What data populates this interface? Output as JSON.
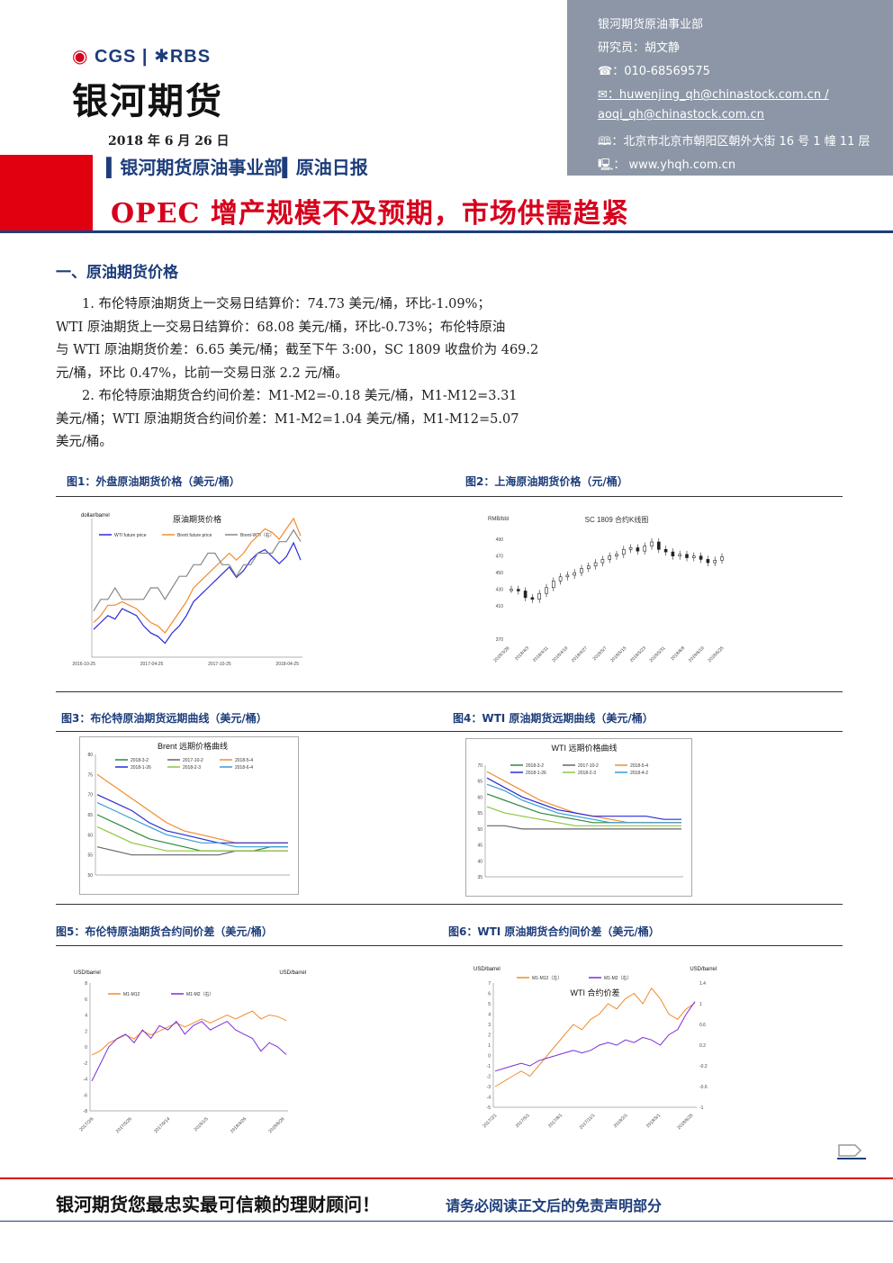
{
  "header": {
    "brand_cgs": "CGS",
    "brand_sep": "|",
    "brand_rbs": "RBS",
    "company_cn": "银河期货",
    "date": "2018 年 6 月 26 日",
    "dept_line": "▍银河期货原油事业部▍原油日报"
  },
  "contact": {
    "dept": "银河期货原油事业部",
    "analyst": "研究员：胡文静",
    "phone": "☎：010-68569575",
    "email1": "✉：huwenjing_qh@chinastock.com.cn /",
    "email2": "aoqi_qh@chinastock.com.cn",
    "address": "🕮：北京市北京市朝阳区朝外大街 16 号 1 幢 11 层",
    "web": "🖳： www.yhqh.com.cn"
  },
  "title": "OPEC 增产规模不及预期，市场供需趋紧",
  "section1": "一、原油期货价格",
  "paragraphs": {
    "p1_l1": "1. 布伦特原油期货上一交易日结算价：74.73 美元/桶，环比-1.09%；",
    "p1_l2": "WTI 原油期货上一交易日结算价：68.08 美元/桶，环比-0.73%；布伦特原油",
    "p1_l3": "与 WTI 原油期货价差：6.65 美元/桶；截至下午 3:00，SC 1809  收盘价为 469.2",
    "p1_l4": "元/桶，环比 0.47%，比前一交易日涨 2.2 元/桶。",
    "p2_l1": "2. 布伦特原油期货合约间价差：M1-M2=-0.18 美元/桶，M1-M12=3.31",
    "p2_l2": "美元/桶；WTI 原油期货合约间价差：M1-M2=1.04 美元/桶，M1-M12=5.07",
    "p2_l3": "美元/桶。"
  },
  "figures": {
    "fig1_label": "图1：外盘原油期货价格（美元/桶）",
    "fig2_label": "图2：上海原油期货价格（元/桶）",
    "fig3_label": "图3：布伦特原油期货远期曲线（美元/桶）",
    "fig4_label": "图4：WTI 原油期货远期曲线（美元/桶）",
    "fig5_label": "图5：布伦特原油期货合约间价差（美元/桶）",
    "fig6_label": "图6：WTI 原油期货合约间价差（美元/桶）"
  },
  "footer": {
    "slogan": "银河期货您最忠实最可信赖的理财顾问！",
    "disclaimer": "请务必阅读正文后的免责声明部分"
  },
  "chart_data": [
    {
      "id": "fig1",
      "type": "line",
      "title": "原油期货价格",
      "ylabel": "dollar/barrel",
      "ylim": [
        40,
        80
      ],
      "y2lim": [
        -3,
        9
      ],
      "x_ticks": [
        "2016-10-25",
        "2017-04-25",
        "2017-10-25",
        "2018-04-25"
      ],
      "series": [
        {
          "name": "WTI future price",
          "color": "#2b2bd6",
          "values": [
            48,
            50,
            52,
            51,
            54,
            53,
            52,
            49,
            47,
            46,
            44,
            47,
            49,
            52,
            56,
            58,
            60,
            62,
            64,
            66,
            63,
            65,
            68,
            70,
            71,
            69,
            67,
            69,
            73,
            68
          ]
        },
        {
          "name": "Brent future price",
          "color": "#f08c30",
          "values": [
            50,
            52,
            55,
            55,
            56,
            55,
            54,
            52,
            50,
            49,
            47,
            50,
            53,
            56,
            60,
            62,
            64,
            66,
            68,
            70,
            68,
            70,
            73,
            75,
            77,
            76,
            74,
            77,
            80,
            75
          ]
        },
        {
          "name": "Brent-WTI（右）",
          "color": "#888888",
          "values": [
            1,
            2,
            2,
            3,
            2,
            2,
            2,
            2,
            3,
            3,
            2,
            3,
            4,
            4,
            5,
            5,
            6,
            6,
            5,
            5,
            4,
            5,
            5,
            6,
            6,
            6,
            7,
            7,
            8,
            7
          ]
        }
      ]
    },
    {
      "id": "fig2",
      "type": "candlestick",
      "title": "SC 1809 合约K线图",
      "ylabel": "RMB/bbl",
      "y_ticks": [
        "370",
        "410",
        "430",
        "450",
        "470",
        "490"
      ],
      "ylim": [
        370,
        500
      ],
      "x_ticks": [
        "2018/3/26",
        "2018/4/3",
        "2018/4/11",
        "2018/4/19",
        "2018/4/27",
        "2018/5/7",
        "2018/5/15",
        "2018/5/23",
        "2018/5/31",
        "2018/6/8",
        "2018/6/19",
        "2018/6/25"
      ],
      "values": [
        430,
        428,
        420,
        418,
        425,
        432,
        440,
        445,
        447,
        450,
        455,
        458,
        462,
        466,
        470,
        472,
        478,
        480,
        476,
        482,
        487,
        478,
        475,
        470,
        472,
        468,
        470,
        466,
        462,
        465,
        469
      ]
    },
    {
      "id": "fig3",
      "type": "line",
      "title": "Brent 远期价格曲线",
      "ylim": [
        50,
        80
      ],
      "y_ticks": [
        "50",
        "55",
        "60",
        "65",
        "70",
        "75",
        "80"
      ],
      "legend": [
        "2018-3-2",
        "2017-10-2",
        "2018-5-4",
        "2018-1-26",
        "2018-2-3",
        "2018-6-4"
      ],
      "series": [
        {
          "name": "2018-3-2",
          "color": "#2b8a3e",
          "values": [
            65,
            63,
            61,
            59,
            58,
            57,
            56,
            56,
            56,
            56,
            57,
            57
          ]
        },
        {
          "name": "2017-10-2",
          "color": "#666666",
          "values": [
            57,
            56,
            55,
            55,
            55,
            55,
            55,
            55,
            56,
            56,
            56,
            56
          ]
        },
        {
          "name": "2018-5-4",
          "color": "#f08c30",
          "values": [
            75,
            72,
            69,
            66,
            63,
            61,
            60,
            59,
            58,
            58,
            58,
            58
          ]
        },
        {
          "name": "2018-1-26",
          "color": "#2b2bd6",
          "values": [
            70,
            68,
            66,
            63,
            61,
            60,
            59,
            58,
            58,
            58,
            58,
            58
          ]
        },
        {
          "name": "2018-2-3",
          "color": "#8dc63f",
          "values": [
            62,
            60,
            58,
            57,
            56,
            56,
            56,
            56,
            56,
            56,
            56,
            56
          ]
        },
        {
          "name": "2018-6-4",
          "color": "#3a9bd6",
          "values": [
            68,
            66,
            64,
            62,
            60,
            59,
            58,
            58,
            57,
            57,
            57,
            57
          ]
        }
      ]
    },
    {
      "id": "fig4",
      "type": "line",
      "title": "WTI 远期价格曲线",
      "ylim": [
        35,
        70
      ],
      "y_ticks": [
        "35",
        "40",
        "45",
        "50",
        "55",
        "60",
        "65",
        "70"
      ],
      "legend": [
        "2018-3-2",
        "2017-10-2",
        "2018-5-4",
        "2018-1-26",
        "2018-2-3",
        "2018-4-2"
      ],
      "series": [
        {
          "name": "2018-3-2",
          "color": "#2b8a3e",
          "values": [
            61,
            59,
            57,
            55,
            54,
            53,
            52,
            52,
            52,
            52,
            52,
            52
          ]
        },
        {
          "name": "2017-10-2",
          "color": "#666666",
          "values": [
            51,
            51,
            50,
            50,
            50,
            50,
            50,
            50,
            50,
            50,
            50,
            50
          ]
        },
        {
          "name": "2018-5-4",
          "color": "#f08c30",
          "values": [
            68,
            65,
            62,
            59,
            57,
            55,
            54,
            53,
            52,
            52,
            52,
            52
          ]
        },
        {
          "name": "2018-1-26",
          "color": "#2b2bd6",
          "values": [
            66,
            63,
            60,
            58,
            56,
            55,
            54,
            54,
            54,
            54,
            53,
            53
          ]
        },
        {
          "name": "2018-2-3",
          "color": "#8dc63f",
          "values": [
            57,
            55,
            54,
            53,
            52,
            51,
            51,
            51,
            51,
            51,
            51,
            51
          ]
        },
        {
          "name": "2018-4-2",
          "color": "#3a9bd6",
          "values": [
            64,
            62,
            59,
            57,
            55,
            54,
            53,
            52,
            52,
            52,
            52,
            52
          ]
        }
      ]
    },
    {
      "id": "fig5",
      "type": "line",
      "ylabel": "USD/barrel",
      "y2label": "USD/barrel",
      "ylim": [
        -8,
        8
      ],
      "y2lim": [
        -1.5,
        1.5
      ],
      "y_ticks": [
        "8",
        "6",
        "4",
        "2",
        "0",
        "-2",
        "-4",
        "-6",
        "-8"
      ],
      "x_ticks": [
        "2017/2/6",
        "2017/5/26",
        "2017/9/14",
        "2018/1/5",
        "2018/4/26",
        "2018/6/26"
      ],
      "series": [
        {
          "name": "M1-M12",
          "color": "#f08c30",
          "values": [
            -1,
            -0.5,
            0.5,
            1,
            1.5,
            1,
            2,
            1.5,
            2,
            2.5,
            3,
            2.5,
            3,
            3.5,
            3,
            3.5,
            4,
            3.5,
            4,
            4.5,
            3.5,
            4,
            3.8,
            3.3
          ]
        },
        {
          "name": "M1-M2（右）",
          "color": "#7b2fd6",
          "values": [
            -0.8,
            -0.4,
            0,
            0.2,
            0.3,
            0.1,
            0.4,
            0.2,
            0.5,
            0.4,
            0.6,
            0.3,
            0.5,
            0.6,
            0.4,
            0.5,
            0.6,
            0.4,
            0.3,
            0.2,
            -0.1,
            0.1,
            0,
            -0.18
          ]
        }
      ]
    },
    {
      "id": "fig6",
      "type": "line",
      "title": "WTI 合约价差",
      "ylabel": "USD/barrel",
      "y2label": "USD/barrel",
      "ylim": [
        -5,
        7
      ],
      "y2lim": [
        -1,
        1.4
      ],
      "y_ticks": [
        "7",
        "6",
        "5",
        "4",
        "3",
        "2",
        "1",
        "0",
        "-1",
        "-2",
        "-3",
        "-4",
        "-5"
      ],
      "y2_ticks": [
        "1.4",
        "1",
        "0.6",
        "0.2",
        "-0.2",
        "-0.6",
        "-1"
      ],
      "x_ticks": [
        "2017/2/1",
        "2017/5/1",
        "2017/8/1",
        "2017/11/1",
        "2018/2/1",
        "2018/5/1",
        "2018/6/25"
      ],
      "series": [
        {
          "name": "M1-M12（左）",
          "color": "#f08c30",
          "values": [
            -3,
            -2.5,
            -2,
            -1.5,
            -2,
            -1,
            0,
            1,
            2,
            3,
            2.5,
            3.5,
            4,
            5,
            4.5,
            5.5,
            6,
            5,
            6.5,
            5.5,
            4,
            3.5,
            4.5,
            5.07
          ]
        },
        {
          "name": "M1-M2（右）",
          "color": "#7b2fd6",
          "values": [
            -0.3,
            -0.25,
            -0.2,
            -0.15,
            -0.2,
            -0.1,
            -0.05,
            0,
            0.05,
            0.1,
            0.05,
            0.1,
            0.2,
            0.25,
            0.2,
            0.3,
            0.25,
            0.35,
            0.3,
            0.2,
            0.4,
            0.5,
            0.8,
            1.04
          ]
        }
      ]
    }
  ]
}
